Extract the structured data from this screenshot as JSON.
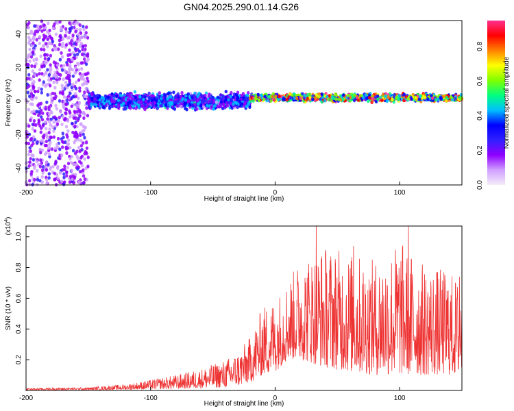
{
  "title": "GN04.2025.290.01.14.G26",
  "chart_data": [
    {
      "type": "heatmap",
      "title": "GN04.2025.290.01.14.G26",
      "xlabel": "Height of straight line (km)",
      "ylabel": "Frequency (Hz)",
      "xlim": [
        -200,
        150
      ],
      "ylim": [
        -50,
        48
      ],
      "xticks": [
        -200,
        -100,
        0,
        100
      ],
      "yticks": [
        -40,
        -20,
        0,
        20,
        40
      ],
      "colorbar": {
        "label": "Normalized spectral amplitude",
        "range": [
          0,
          0.95
        ],
        "ticks": [
          0.0,
          0.2,
          0.4,
          0.6,
          0.8
        ],
        "tick_labels": [
          "0.0",
          "0.2",
          "0.4",
          "0.6",
          "0.8"
        ],
        "colormap": [
          "#f4ecf8",
          "#d0a0ff",
          "#9000ff",
          "#3020ff",
          "#0000ff",
          "#00c0ff",
          "#00ff80",
          "#80ff00",
          "#ffff00",
          "#ff8000",
          "#ff0000",
          "#ff3090"
        ]
      },
      "regions": [
        {
          "x_range": [
            -200,
            -150
          ],
          "freq_range": [
            -50,
            48
          ],
          "amplitude": 0.15,
          "description": "scattered"
        },
        {
          "x_range": [
            -150,
            -20
          ],
          "freq_center": 0,
          "freq_halfwidth": 6,
          "amplitude": 0.4
        },
        {
          "x_range": [
            -20,
            150
          ],
          "freq_center": 2,
          "freq_halfwidth": 3,
          "amplitude": 0.8
        }
      ]
    },
    {
      "type": "line",
      "xlabel": "Height of straight line (km)",
      "ylabel": "SNR (10 * v/v)",
      "yscale_label": "(x10",
      "yscale_exp": "4",
      "yscale_close": ")",
      "xlim": [
        -200,
        150
      ],
      "ylim": [
        0,
        1.07
      ],
      "xticks": [
        -200,
        -100,
        0,
        100
      ],
      "yticks": [
        0.2,
        0.4,
        0.6,
        0.8,
        1.0
      ],
      "ytick_labels": [
        "0.2",
        "0.4",
        "0.6",
        "0.8",
        "1.0"
      ],
      "color": "#ee3333",
      "envelope": {
        "x": [
          -200,
          -150,
          -120,
          -100,
          -80,
          -60,
          -40,
          -30,
          -20,
          -10,
          0,
          10,
          20,
          40,
          60,
          80,
          100,
          120,
          140,
          150
        ],
        "upper": [
          0.015,
          0.02,
          0.04,
          0.07,
          0.1,
          0.14,
          0.2,
          0.25,
          0.35,
          0.55,
          0.6,
          0.72,
          0.85,
          0.95,
          0.9,
          0.85,
          0.98,
          0.82,
          0.78,
          0.7
        ],
        "lower": [
          0.003,
          0.003,
          0.005,
          0.008,
          0.01,
          0.015,
          0.02,
          0.03,
          0.05,
          0.1,
          0.12,
          0.2,
          0.2,
          0.15,
          0.12,
          0.1,
          0.1,
          0.1,
          0.1,
          0.1
        ]
      },
      "peaks": [
        {
          "x": 33,
          "y": 1.07
        },
        {
          "x": 107,
          "y": 1.07
        },
        {
          "x": 63,
          "y": 0.94
        },
        {
          "x": 148,
          "y": 0.74
        }
      ]
    }
  ]
}
